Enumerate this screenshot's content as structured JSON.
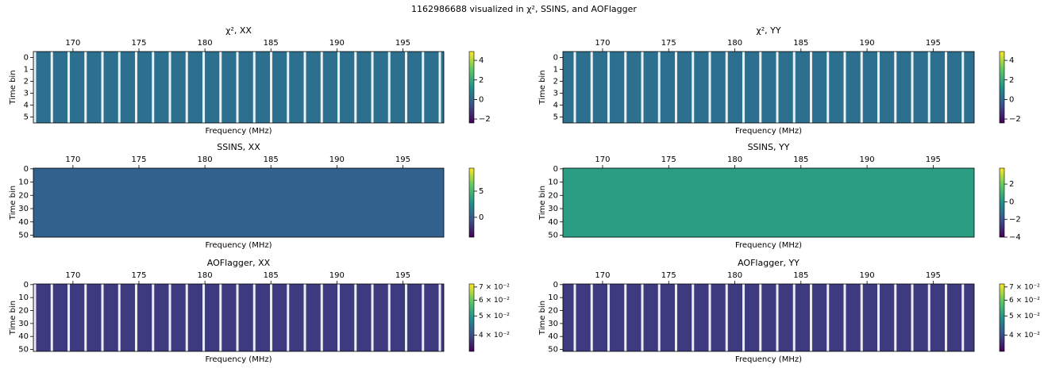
{
  "title": "1162986688 visualized in χ², SSINS, and AOFlagger",
  "chart_data": [
    {
      "type": "heatmap",
      "title": "χ², XX",
      "xlabel": "Frequency (MHz)",
      "ylabel": "Time bin",
      "xlim": [
        167.0,
        198.1
      ],
      "xticks": [
        170,
        175,
        180,
        185,
        190,
        195
      ],
      "ylim": [
        5.5,
        -0.5
      ],
      "yticks": [
        0,
        1,
        2,
        3,
        4,
        5
      ],
      "color": "#2c6f8e",
      "stripes": true,
      "colormap": "viridis",
      "colorbar": {
        "clim": [
          -2.4,
          4.9
        ],
        "log": false,
        "ticks": [
          {
            "value": -2,
            "label": "−2"
          },
          0,
          2,
          4
        ]
      }
    },
    {
      "type": "heatmap",
      "title": "χ², YY",
      "xlabel": "Frequency (MHz)",
      "ylabel": "Time bin",
      "xlim": [
        167.0,
        198.1
      ],
      "xticks": [
        170,
        175,
        180,
        185,
        190,
        195
      ],
      "ylim": [
        5.5,
        -0.5
      ],
      "yticks": [
        0,
        1,
        2,
        3,
        4,
        5
      ],
      "color": "#2c6f8e",
      "stripes": true,
      "colormap": "viridis",
      "colorbar": {
        "clim": [
          -2.4,
          4.9
        ],
        "log": false,
        "ticks": [
          {
            "value": -2,
            "label": "−2"
          },
          0,
          2,
          4
        ]
      }
    },
    {
      "type": "heatmap",
      "title": "SSINS, XX",
      "xlabel": "Frequency (MHz)",
      "ylabel": "Time bin",
      "xlim": [
        167.0,
        198.1
      ],
      "xticks": [
        170,
        175,
        180,
        185,
        190,
        195
      ],
      "ylim": [
        51.5,
        -0.5
      ],
      "yticks": [
        0,
        10,
        20,
        30,
        40,
        50
      ],
      "color": "#33618d",
      "stripes": false,
      "colormap": "viridis",
      "colorbar": {
        "clim": [
          -3.8,
          9.4
        ],
        "log": false,
        "ticks": [
          0,
          5
        ]
      }
    },
    {
      "type": "heatmap",
      "title": "SSINS, YY",
      "xlabel": "Frequency (MHz)",
      "ylabel": "Time bin",
      "xlim": [
        167.0,
        198.1
      ],
      "xticks": [
        170,
        175,
        180,
        185,
        190,
        195
      ],
      "ylim": [
        51.5,
        -0.5
      ],
      "yticks": [
        0,
        10,
        20,
        30,
        40,
        50
      ],
      "color": "#2a9d83",
      "stripes": false,
      "colormap": "viridis",
      "colorbar": {
        "clim": [
          -4,
          3.8
        ],
        "log": false,
        "ticks": [
          {
            "value": -4,
            "label": "−4"
          },
          {
            "value": -2,
            "label": "−2"
          },
          0,
          2
        ]
      }
    },
    {
      "type": "heatmap",
      "title": "AOFlagger, XX",
      "xlabel": "Frequency (MHz)",
      "ylabel": "Time bin",
      "xlim": [
        167.0,
        198.1
      ],
      "xticks": [
        170,
        175,
        180,
        185,
        190,
        195
      ],
      "ylim": [
        51.5,
        -0.5
      ],
      "yticks": [
        0,
        10,
        20,
        30,
        40,
        50
      ],
      "color": "#3e3a80",
      "stripes": true,
      "colormap": "viridis",
      "colorbar": {
        "clim": [
          0.0331,
          0.0725
        ],
        "log": true,
        "ticks": [
          {
            "value": 0.04,
            "label": "4 × 10⁻²"
          },
          {
            "value": 0.05,
            "label": "5 × 10⁻²"
          },
          {
            "value": 0.06,
            "label": "6 × 10⁻²"
          },
          {
            "value": 0.07,
            "label": "7 × 10⁻²"
          }
        ]
      }
    },
    {
      "type": "heatmap",
      "title": "AOFlagger, YY",
      "xlabel": "Frequency (MHz)",
      "ylabel": "Time bin",
      "xlim": [
        167.0,
        198.1
      ],
      "xticks": [
        170,
        175,
        180,
        185,
        190,
        195
      ],
      "ylim": [
        51.5,
        -0.5
      ],
      "yticks": [
        0,
        10,
        20,
        30,
        40,
        50
      ],
      "color": "#3e3a80",
      "stripes": true,
      "colormap": "viridis",
      "colorbar": {
        "clim": [
          0.0331,
          0.0725
        ],
        "log": true,
        "ticks": [
          {
            "value": 0.04,
            "label": "4 × 10⁻²"
          },
          {
            "value": 0.05,
            "label": "5 × 10⁻²"
          },
          {
            "value": 0.06,
            "label": "6 × 10⁻²"
          },
          {
            "value": 0.07,
            "label": "7 × 10⁻²"
          }
        ]
      }
    }
  ]
}
